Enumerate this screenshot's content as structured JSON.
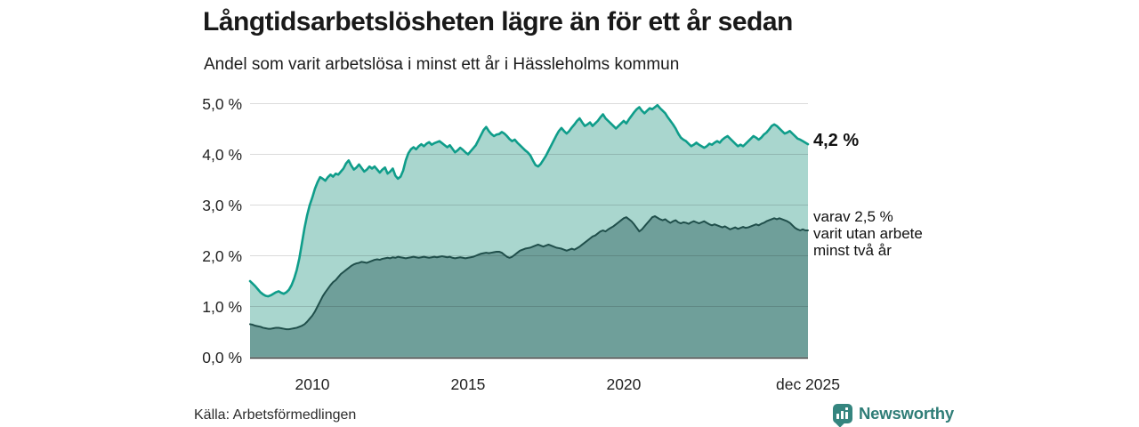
{
  "header": {
    "title": "Långtidsarbetslösheten lägre än för ett år sedan",
    "subtitle": "Andel som varit arbetslösa i minst ett år i Hässleholms kommun"
  },
  "annotations": {
    "latest_total": "4,2 %",
    "varav_lines": [
      "varav 2,5 %",
      "varit utan arbete",
      "minst två år"
    ]
  },
  "footer": {
    "source": "Källa: Arbetsförmedlingen",
    "brand_name": "Newsworthy"
  },
  "colors": {
    "total_line": "#0f9d8a",
    "total_fill": "#a9d6ce",
    "two_year_line": "#204f4b",
    "two_year_fill": "#6f9f9a",
    "grid": "#d9d9d9",
    "axis": "#3a3a3a",
    "brand_teal": "#2f7d77"
  },
  "chart_data": {
    "type": "area",
    "title": "Långtidsarbetslösheten lägre än för ett år sedan",
    "subtitle": "Andel som varit arbetslösa i minst ett år i Hässleholms kommun",
    "x_unit": "month",
    "x_start": "2008-01",
    "x_end": "2025-12",
    "ylim": [
      0,
      5
    ],
    "grid": true,
    "y_ticks": [
      {
        "label": "0,0 %",
        "value": 0
      },
      {
        "label": "1,0 %",
        "value": 1
      },
      {
        "label": "2,0 %",
        "value": 2
      },
      {
        "label": "3,0 %",
        "value": 3
      },
      {
        "label": "4,0 %",
        "value": 4
      },
      {
        "label": "5,0 %",
        "value": 5
      }
    ],
    "x_ticks": [
      {
        "label": "2010",
        "month_index": 24
      },
      {
        "label": "2015",
        "month_index": 84
      },
      {
        "label": "2020",
        "month_index": 144
      },
      {
        "label": "dec 2025",
        "month_index": 215
      }
    ],
    "series": [
      {
        "name": "Andel som varit arbetslösa i minst ett år",
        "end_label": "4,2 %",
        "end_value": 4.2,
        "line_color": "#0f9d8a",
        "fill_color": "#a9d6ce",
        "line_width": 2.6,
        "values": [
          1.5,
          1.45,
          1.4,
          1.34,
          1.28,
          1.24,
          1.21,
          1.2,
          1.22,
          1.25,
          1.28,
          1.3,
          1.27,
          1.25,
          1.28,
          1.33,
          1.42,
          1.55,
          1.72,
          1.95,
          2.25,
          2.55,
          2.8,
          3.0,
          3.15,
          3.32,
          3.45,
          3.55,
          3.52,
          3.48,
          3.55,
          3.6,
          3.56,
          3.62,
          3.6,
          3.66,
          3.72,
          3.82,
          3.88,
          3.78,
          3.7,
          3.74,
          3.8,
          3.73,
          3.66,
          3.7,
          3.76,
          3.72,
          3.76,
          3.7,
          3.64,
          3.7,
          3.74,
          3.62,
          3.66,
          3.72,
          3.58,
          3.52,
          3.56,
          3.68,
          3.88,
          4.02,
          4.1,
          4.14,
          4.1,
          4.16,
          4.2,
          4.16,
          4.21,
          4.24,
          4.19,
          4.22,
          4.24,
          4.26,
          4.22,
          4.18,
          4.14,
          4.18,
          4.11,
          4.04,
          4.08,
          4.13,
          4.09,
          4.04,
          4.0,
          4.06,
          4.12,
          4.18,
          4.28,
          4.38,
          4.48,
          4.54,
          4.46,
          4.4,
          4.36,
          4.39,
          4.4,
          4.44,
          4.41,
          4.36,
          4.3,
          4.26,
          4.29,
          4.23,
          4.18,
          4.13,
          4.08,
          4.04,
          3.98,
          3.88,
          3.79,
          3.76,
          3.81,
          3.89,
          3.97,
          4.07,
          4.17,
          4.27,
          4.37,
          4.46,
          4.52,
          4.46,
          4.41,
          4.46,
          4.53,
          4.59,
          4.66,
          4.71,
          4.63,
          4.56,
          4.59,
          4.63,
          4.56,
          4.61,
          4.66,
          4.73,
          4.79,
          4.71,
          4.66,
          4.61,
          4.56,
          4.51,
          4.56,
          4.61,
          4.66,
          4.61,
          4.69,
          4.76,
          4.83,
          4.89,
          4.93,
          4.86,
          4.81,
          4.86,
          4.91,
          4.89,
          4.93,
          4.97,
          4.91,
          4.86,
          4.81,
          4.73,
          4.66,
          4.59,
          4.51,
          4.41,
          4.33,
          4.29,
          4.26,
          4.21,
          4.16,
          4.19,
          4.23,
          4.19,
          4.16,
          4.13,
          4.16,
          4.21,
          4.19,
          4.23,
          4.26,
          4.23,
          4.29,
          4.33,
          4.36,
          4.31,
          4.26,
          4.21,
          4.16,
          4.19,
          4.16,
          4.21,
          4.26,
          4.31,
          4.36,
          4.33,
          4.29,
          4.33,
          4.39,
          4.43,
          4.49,
          4.56,
          4.59,
          4.56,
          4.51,
          4.46,
          4.41,
          4.43,
          4.46,
          4.41,
          4.36,
          4.31,
          4.29,
          4.26,
          4.23,
          4.2
        ]
      },
      {
        "name": "varav varit utan arbete minst två år",
        "end_label": "varav 2,5 % varit utan arbete minst två år",
        "end_value": 2.5,
        "line_color": "#204f4b",
        "fill_color": "#6f9f9a",
        "line_width": 2,
        "values": [
          0.65,
          0.64,
          0.62,
          0.61,
          0.6,
          0.58,
          0.57,
          0.56,
          0.56,
          0.57,
          0.58,
          0.58,
          0.57,
          0.56,
          0.55,
          0.55,
          0.56,
          0.57,
          0.58,
          0.6,
          0.62,
          0.65,
          0.7,
          0.76,
          0.82,
          0.9,
          1.0,
          1.1,
          1.2,
          1.28,
          1.35,
          1.42,
          1.48,
          1.52,
          1.58,
          1.64,
          1.68,
          1.72,
          1.76,
          1.8,
          1.83,
          1.85,
          1.86,
          1.88,
          1.87,
          1.86,
          1.88,
          1.9,
          1.92,
          1.93,
          1.92,
          1.94,
          1.95,
          1.96,
          1.95,
          1.97,
          1.96,
          1.98,
          1.97,
          1.96,
          1.95,
          1.96,
          1.97,
          1.98,
          1.97,
          1.96,
          1.97,
          1.98,
          1.97,
          1.96,
          1.97,
          1.98,
          1.97,
          1.98,
          1.99,
          1.98,
          1.97,
          1.98,
          1.96,
          1.95,
          1.96,
          1.97,
          1.96,
          1.95,
          1.96,
          1.97,
          1.98,
          2.0,
          2.02,
          2.04,
          2.05,
          2.06,
          2.05,
          2.06,
          2.07,
          2.08,
          2.08,
          2.06,
          2.02,
          1.98,
          1.96,
          1.98,
          2.02,
          2.06,
          2.1,
          2.12,
          2.14,
          2.15,
          2.16,
          2.18,
          2.2,
          2.22,
          2.2,
          2.18,
          2.2,
          2.22,
          2.2,
          2.18,
          2.16,
          2.15,
          2.14,
          2.12,
          2.1,
          2.12,
          2.14,
          2.12,
          2.15,
          2.18,
          2.22,
          2.26,
          2.3,
          2.34,
          2.38,
          2.4,
          2.44,
          2.48,
          2.5,
          2.48,
          2.52,
          2.55,
          2.58,
          2.62,
          2.66,
          2.7,
          2.74,
          2.76,
          2.72,
          2.68,
          2.62,
          2.55,
          2.48,
          2.52,
          2.58,
          2.64,
          2.7,
          2.76,
          2.78,
          2.75,
          2.72,
          2.7,
          2.72,
          2.68,
          2.65,
          2.68,
          2.7,
          2.66,
          2.64,
          2.66,
          2.65,
          2.63,
          2.66,
          2.68,
          2.66,
          2.64,
          2.66,
          2.68,
          2.65,
          2.62,
          2.6,
          2.62,
          2.6,
          2.58,
          2.56,
          2.58,
          2.55,
          2.52,
          2.54,
          2.56,
          2.53,
          2.55,
          2.57,
          2.55,
          2.56,
          2.58,
          2.6,
          2.62,
          2.6,
          2.63,
          2.65,
          2.68,
          2.7,
          2.72,
          2.74,
          2.72,
          2.74,
          2.72,
          2.7,
          2.68,
          2.65,
          2.6,
          2.55,
          2.52,
          2.5,
          2.52,
          2.5,
          2.5
        ]
      }
    ]
  }
}
